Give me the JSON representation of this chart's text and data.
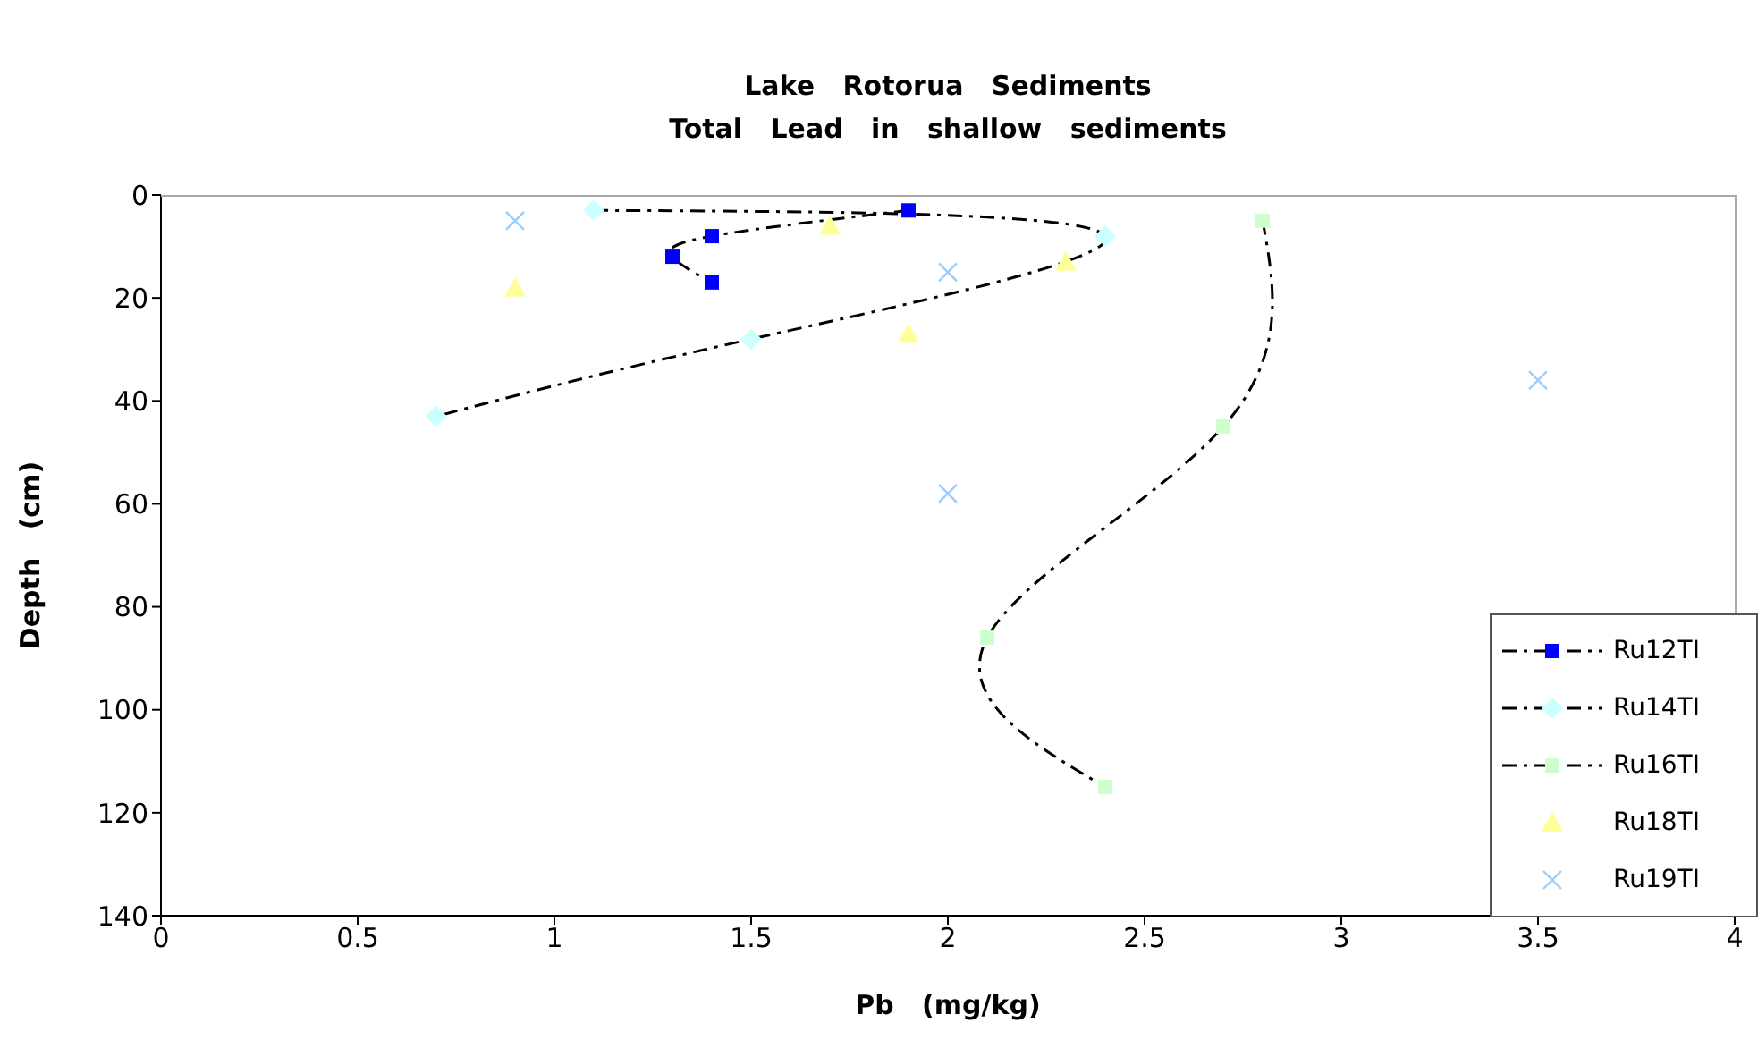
{
  "chart_data": {
    "type": "line",
    "title": "Lake   Rotorua   Sediments",
    "subtitle": "Total   Lead   in   shallow   sediments",
    "xlabel": "Pb   (mg/kg)",
    "ylabel": "Depth   (cm)",
    "xlim": [
      0,
      4
    ],
    "xticks": [
      0,
      0.5,
      1,
      1.5,
      2,
      2.5,
      3,
      3.5,
      4
    ],
    "ylim": [
      140,
      0
    ],
    "yticks": [
      0,
      20,
      40,
      60,
      80,
      100,
      120,
      140
    ],
    "grid": false,
    "legend": "bottom right",
    "series": [
      {
        "name": "Ru12TI",
        "color": "#0000ff",
        "marker": "square",
        "line_style": "dashed",
        "x": [
          1.9,
          1.4,
          1.3,
          1.4
        ],
        "values": [
          3,
          8,
          12,
          17
        ]
      },
      {
        "name": "Ru14TI",
        "color": "#ccffff",
        "marker": "diamond",
        "line_style": "dashed",
        "x": [
          1.1,
          2.4,
          1.5,
          0.7
        ],
        "values": [
          3,
          8,
          28,
          43
        ]
      },
      {
        "name": "Ru16TI",
        "color": "#ccffcc",
        "marker": "square",
        "line_style": "dashed",
        "x": [
          2.8,
          2.7,
          2.1,
          2.4
        ],
        "values": [
          5,
          45,
          86,
          115
        ]
      },
      {
        "name": "Ru18TI",
        "type": "scatter",
        "color": "#ffff99",
        "marker": "triangle",
        "x": [
          1.7,
          0.9,
          2.3,
          1.9
        ],
        "values": [
          6,
          18,
          13,
          27
        ]
      },
      {
        "name": "Ru19TI",
        "type": "scatter",
        "color": "#99ccff",
        "marker": "cross",
        "x": [
          0.9,
          2.0,
          2.0,
          3.5
        ],
        "values": [
          5,
          15,
          58,
          36
        ]
      }
    ]
  }
}
